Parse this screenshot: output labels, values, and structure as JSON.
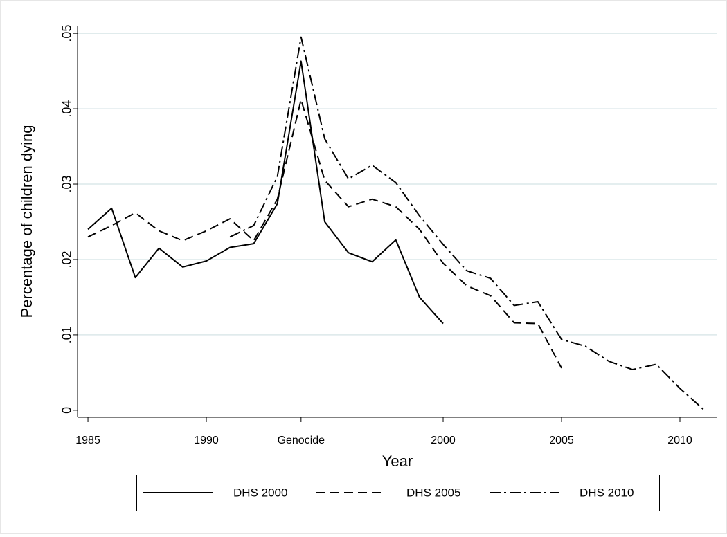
{
  "chart_data": {
    "type": "line",
    "xlabel": "Year",
    "ylabel": "Percentage of children dying",
    "x": [
      1985,
      1986,
      1987,
      1988,
      1989,
      1990,
      1991,
      1992,
      1993,
      1994,
      1995,
      1996,
      1997,
      1998,
      1999,
      2000,
      2001,
      2002,
      2003,
      2004,
      2005,
      2006,
      2007,
      2008,
      2009,
      2010,
      2011
    ],
    "series": [
      {
        "name": "DHS 2000",
        "color": "#000000",
        "dash": "solid",
        "values": [
          0.024,
          0.0268,
          0.0176,
          0.0215,
          0.019,
          0.0198,
          0.0216,
          0.0221,
          0.0274,
          0.0463,
          0.025,
          0.0209,
          0.0197,
          0.0226,
          0.015,
          0.0115,
          null,
          null,
          null,
          null,
          null,
          null,
          null,
          null,
          null,
          null,
          null
        ]
      },
      {
        "name": "DHS 2005",
        "color": "#000000",
        "dash": "dash",
        "values": [
          0.023,
          0.0245,
          0.0262,
          0.0238,
          0.0225,
          0.0238,
          0.0254,
          0.0225,
          0.028,
          0.0412,
          0.0305,
          0.027,
          0.028,
          0.027,
          0.024,
          0.0195,
          0.0165,
          0.0152,
          0.0116,
          0.0115,
          0.0056,
          null,
          null,
          null,
          null,
          null,
          null
        ]
      },
      {
        "name": "DHS 2010",
        "color": "#000000",
        "dash": "dashdot",
        "values": [
          null,
          null,
          null,
          null,
          null,
          null,
          0.023,
          0.0245,
          0.031,
          0.0495,
          0.036,
          0.0307,
          0.0325,
          0.0302,
          0.0258,
          0.022,
          0.0185,
          0.0175,
          0.0139,
          0.0144,
          0.0094,
          0.0085,
          0.0065,
          0.0054,
          0.0061,
          0.0029,
          0.0001
        ]
      }
    ],
    "xlim": [
      1984.56,
      2011.55
    ],
    "ylim": [
      -0.00093,
      0.0535
    ],
    "xticks": [
      1985,
      1990,
      {
        "value": 1994,
        "label": "Genocide"
      },
      2000,
      2005,
      2010
    ],
    "yticks": [
      0,
      {
        "value": 0.01,
        "label": ".01"
      },
      {
        "value": 0.02,
        "label": ".02"
      },
      {
        "value": 0.03,
        "label": ".03"
      },
      {
        "value": 0.04,
        "label": ".04"
      },
      {
        "value": 0.05,
        "label": ".05"
      }
    ],
    "grid": true,
    "legend": "bottom"
  }
}
